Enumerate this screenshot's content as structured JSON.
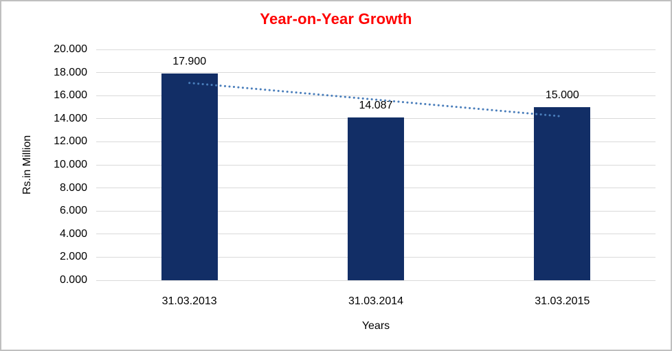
{
  "chart_data": {
    "type": "bar",
    "title": "Year-on-Year Growth",
    "categories": [
      "31.03.2013",
      "31.03.2014",
      "31.03.2015"
    ],
    "values": [
      17.9,
      14.087,
      15.0
    ],
    "value_labels": [
      "17.900",
      "14.087",
      "15.000"
    ],
    "xlabel": "Years",
    "ylabel": "Rs.in Million",
    "ylim": [
      0,
      20
    ],
    "ytick_step": 2,
    "ytick_labels": [
      "0.000",
      "2.000",
      "4.000",
      "6.000",
      "8.000",
      "10.000",
      "12.000",
      "14.000",
      "16.000",
      "18.000",
      "20.000"
    ],
    "grid": "horizontal",
    "legend": "none",
    "trendline": {
      "type": "linear",
      "style": "dotted",
      "start_value": 17.1,
      "end_value": 14.2
    }
  },
  "colors": {
    "title": "#ff0000",
    "bar": "#122e66",
    "trendline": "#4a7ebb",
    "gridline": "#d9d9d9",
    "axis_text": "#000000",
    "border": "#bfbfbf",
    "background": "#ffffff"
  }
}
